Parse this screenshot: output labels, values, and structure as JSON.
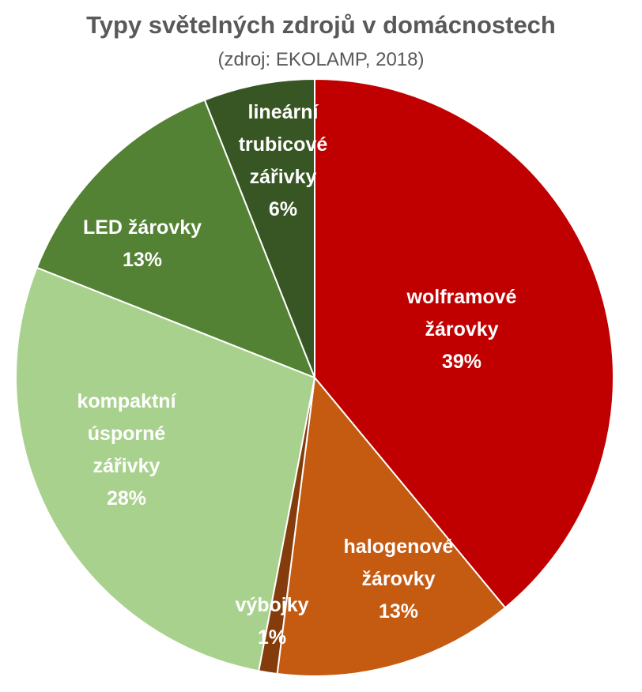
{
  "chart_data": {
    "type": "pie",
    "title": "Typy světelných zdrojů v domácnostech",
    "subtitle": "(zdroj: EKOLAMP, 2018)",
    "start_angle_deg": 0,
    "direction": "clockwise",
    "slices": [
      {
        "lines": [
          "wolframové",
          "žárovky"
        ],
        "value": 39,
        "value_label": "39%",
        "color": "#C00000"
      },
      {
        "lines": [
          "halogenové",
          "žárovky"
        ],
        "value": 13,
        "value_label": "13%",
        "color": "#C55A11"
      },
      {
        "lines": [
          "výbojky"
        ],
        "value": 1,
        "value_label": "1%",
        "color": "#843C0C"
      },
      {
        "lines": [
          "kompaktní",
          "úsporné",
          "zářivky"
        ],
        "value": 28,
        "value_label": "28%",
        "color": "#A9D18E"
      },
      {
        "lines": [
          "LED žárovky"
        ],
        "value": 13,
        "value_label": "13%",
        "color": "#548235"
      },
      {
        "lines": [
          "lineární",
          "trubicové",
          "zářivky"
        ],
        "value": 6,
        "value_label": "6%",
        "color": "#375623"
      }
    ]
  }
}
